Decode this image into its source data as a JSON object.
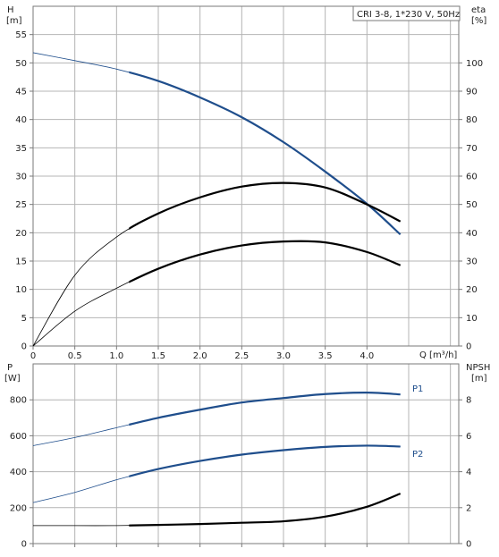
{
  "colors": {
    "grid": "#b4b4b4",
    "frame": "#7a7a7a",
    "head_curve": "#1f4e8c",
    "power_curve": "#1f4e8c",
    "eff_curve": "#000000",
    "npsh_curve": "#000000",
    "background": "#ffffff"
  },
  "chart_data": [
    {
      "type": "line",
      "legend": "CRI 3-8, 1*230 V, 50Hz",
      "legend_position": "top-right",
      "grid": true,
      "x": {
        "label": "Q [m³/h]",
        "lim": [
          0,
          5.1
        ],
        "ticks": [
          0,
          0.5,
          1.0,
          1.5,
          2.0,
          2.5,
          3.0,
          3.5,
          4.0
        ],
        "tick_labels": [
          "0",
          "0.5",
          "1.0",
          "1.5",
          "2.0",
          "2.5",
          "3.0",
          "3.5",
          "4.0"
        ]
      },
      "y_left": {
        "label_top": "H",
        "label_unit": "[m]",
        "lim": [
          0,
          60
        ],
        "ticks": [
          0,
          5,
          10,
          15,
          20,
          25,
          30,
          35,
          40,
          45,
          50,
          55
        ],
        "tick_labels": [
          "0",
          "5",
          "10",
          "15",
          "20",
          "25",
          "30",
          "35",
          "40",
          "45",
          "50",
          "55"
        ]
      },
      "y_right": {
        "label_top": "eta",
        "label_unit": "[%]",
        "lim": [
          0,
          120
        ],
        "ticks": [
          0,
          10,
          20,
          30,
          40,
          50,
          60,
          70,
          80,
          90,
          100
        ],
        "tick_labels": [
          "0",
          "10",
          "20",
          "30",
          "40",
          "50",
          "60",
          "70",
          "80",
          "90",
          "100"
        ]
      },
      "series": [
        {
          "key": "head",
          "axis": "left",
          "x": [
            0,
            0.5,
            1.0,
            1.5,
            2.0,
            2.5,
            3.0,
            3.5,
            4.0,
            4.4
          ],
          "values": [
            51.8,
            50.4,
            48.9,
            46.8,
            43.9,
            40.4,
            36.0,
            30.8,
            25.1,
            19.7
          ]
        },
        {
          "key": "efficiency_low",
          "axis": "right",
          "x": [
            0,
            0.5,
            1.0,
            1.5,
            2.0,
            2.5,
            3.0,
            3.5,
            4.0,
            4.4
          ],
          "values": [
            0,
            25,
            38.5,
            46.8,
            52.5,
            56.3,
            57.6,
            56.0,
            50.0,
            44.0
          ]
        },
        {
          "key": "efficiency_high",
          "axis": "right",
          "x": [
            0,
            0.5,
            1.0,
            1.5,
            2.0,
            2.5,
            3.0,
            3.5,
            4.0,
            4.4
          ],
          "values": [
            0,
            12.3,
            20.4,
            27.3,
            32.3,
            35.5,
            36.9,
            36.6,
            33.2,
            28.5
          ]
        }
      ]
    },
    {
      "type": "line",
      "grid": true,
      "x": {
        "lim": [
          0,
          5.1
        ],
        "ticks": [
          0,
          0.5,
          1.0,
          1.5,
          2.0,
          2.5,
          3.0,
          3.5,
          4.0
        ]
      },
      "y_left": {
        "label_top": "P",
        "label_unit": "[W]",
        "lim": [
          0,
          1000
        ],
        "ticks": [
          0,
          200,
          400,
          600,
          800
        ],
        "tick_labels": [
          "0",
          "200",
          "400",
          "600",
          "800"
        ]
      },
      "y_right": {
        "label_top": "NPSH",
        "label_unit": "[m]",
        "lim": [
          0,
          10
        ],
        "ticks": [
          0,
          2,
          4,
          6,
          8
        ],
        "tick_labels": [
          "0",
          "2",
          "4",
          "6",
          "8"
        ]
      },
      "series": [
        {
          "key": "p1",
          "name": "P1",
          "axis": "left",
          "x": [
            0,
            0.5,
            1.0,
            1.5,
            2.0,
            2.5,
            3.0,
            3.5,
            4.0,
            4.4
          ],
          "values": [
            545,
            590,
            645,
            700,
            745,
            785,
            810,
            832,
            840,
            830
          ]
        },
        {
          "key": "p2",
          "name": "P2",
          "axis": "left",
          "x": [
            0,
            0.5,
            1.0,
            1.5,
            2.0,
            2.5,
            3.0,
            3.5,
            4.0,
            4.4
          ],
          "values": [
            228,
            285,
            355,
            415,
            460,
            495,
            520,
            538,
            545,
            540
          ]
        },
        {
          "key": "npsh",
          "axis": "right",
          "x": [
            0,
            0.5,
            1.0,
            1.5,
            2.0,
            2.5,
            3.0,
            3.5,
            4.0,
            4.4
          ],
          "values": [
            1.0,
            1.0,
            1.0,
            1.04,
            1.09,
            1.16,
            1.24,
            1.5,
            2.05,
            2.78
          ]
        }
      ]
    }
  ]
}
